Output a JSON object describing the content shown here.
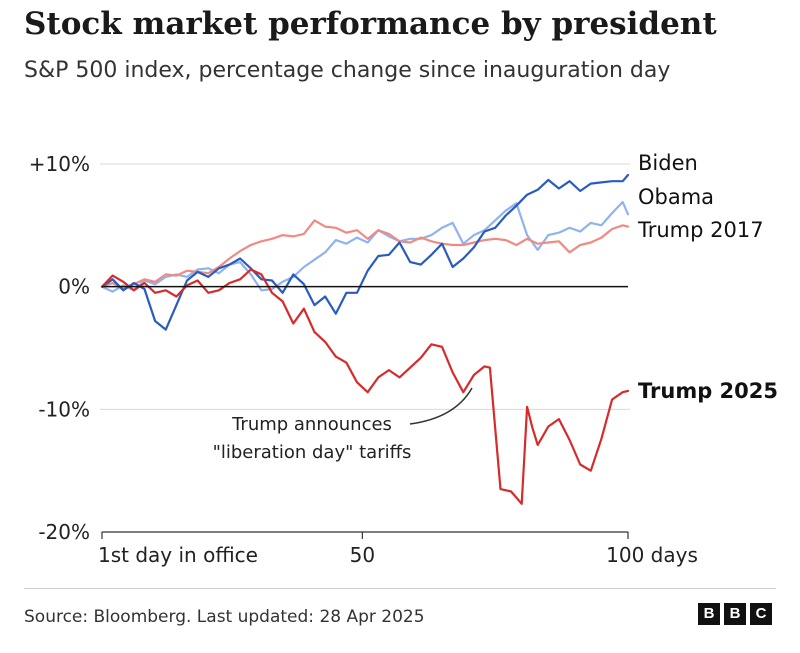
{
  "title": "Stock market performance by president",
  "subtitle": "S&P 500 index, percentage change since inauguration day",
  "source": "Source: Bloomberg. Last updated: 28 Apr 2025",
  "logo_letters": [
    "B",
    "B",
    "C"
  ],
  "annotation": {
    "line1": "Trump announces",
    "line2": "\"liberation day\" tariffs"
  },
  "colors": {
    "biden": "#2a5cbf",
    "obama": "#8fb3ee",
    "trump2017": "#f08a84",
    "trump2025": "#d62b2b",
    "zero_line": "#111111",
    "grid": "#d9d9d9"
  },
  "chart_data": {
    "type": "line",
    "title": "Stock market performance by president",
    "subtitle": "S&P 500 index, percentage change since inauguration day",
    "xlabel": "",
    "ylabel": "",
    "xlim": [
      1,
      100
    ],
    "ylim": [
      -20,
      10
    ],
    "x_ticks": [
      {
        "value": 1,
        "label": "1st day in office"
      },
      {
        "value": 50,
        "label": "50"
      },
      {
        "value": 100,
        "label": "100 days"
      }
    ],
    "y_ticks": [
      {
        "value": 10,
        "label": "+10%"
      },
      {
        "value": 0,
        "label": "0%"
      },
      {
        "value": -10,
        "label": "-10%"
      },
      {
        "value": -20,
        "label": "-20%"
      }
    ],
    "grid": true,
    "legend": "labels at line ends (right)",
    "series": [
      {
        "name": "Biden",
        "key": "biden",
        "bold": false,
        "x": [
          1,
          3,
          5,
          7,
          9,
          11,
          13,
          15,
          17,
          19,
          21,
          23,
          25,
          27,
          29,
          31,
          33,
          35,
          37,
          39,
          41,
          43,
          45,
          47,
          49,
          51,
          53,
          55,
          57,
          59,
          61,
          63,
          65,
          67,
          69,
          71,
          73,
          75,
          77,
          79,
          81,
          83,
          85,
          87,
          89,
          91,
          93,
          95,
          97,
          99,
          100
        ],
        "y": [
          0,
          0.6,
          -0.3,
          0.3,
          -0.2,
          -2.8,
          -3.5,
          -1.5,
          0.5,
          1.2,
          0.8,
          1.5,
          1.8,
          2.3,
          1.5,
          0.6,
          0.5,
          -0.5,
          1.0,
          0.2,
          -1.5,
          -0.8,
          -2.2,
          -0.5,
          -0.5,
          1.3,
          2.5,
          2.6,
          3.6,
          2.0,
          1.8,
          2.6,
          3.5,
          1.6,
          2.3,
          3.2,
          4.5,
          4.8,
          5.8,
          6.6,
          7.5,
          7.9,
          8.7,
          8.0,
          8.6,
          7.8,
          8.4,
          8.5,
          8.6,
          8.6,
          9.1
        ]
      },
      {
        "name": "Obama",
        "key": "obama",
        "bold": false,
        "x": [
          1,
          3,
          5,
          7,
          9,
          11,
          13,
          15,
          17,
          19,
          21,
          23,
          25,
          27,
          29,
          31,
          33,
          35,
          37,
          39,
          41,
          43,
          45,
          47,
          49,
          51,
          53,
          55,
          57,
          59,
          61,
          63,
          65,
          67,
          69,
          71,
          73,
          75,
          77,
          79,
          81,
          83,
          85,
          87,
          89,
          91,
          93,
          95,
          97,
          99,
          100
        ],
        "y": [
          0,
          -0.4,
          0.1,
          -0.3,
          0.5,
          0.2,
          0.8,
          1.0,
          0.8,
          1.4,
          1.5,
          1.1,
          1.8,
          2.0,
          1.0,
          -0.3,
          -0.2,
          0.4,
          0.8,
          1.6,
          2.2,
          2.8,
          3.8,
          3.5,
          4.0,
          3.6,
          4.6,
          4.1,
          3.7,
          3.9,
          3.9,
          4.2,
          4.8,
          5.2,
          3.5,
          4.2,
          4.6,
          5.4,
          6.2,
          6.8,
          4.2,
          3.0,
          4.2,
          4.4,
          4.8,
          4.5,
          5.2,
          5.0,
          6.0,
          6.9,
          5.9
        ]
      },
      {
        "name": "Trump 2017",
        "key": "trump2017",
        "bold": false,
        "x": [
          1,
          3,
          5,
          7,
          9,
          11,
          13,
          15,
          17,
          19,
          21,
          23,
          25,
          27,
          29,
          31,
          33,
          35,
          37,
          39,
          41,
          43,
          45,
          47,
          49,
          51,
          53,
          55,
          57,
          59,
          61,
          63,
          65,
          67,
          69,
          71,
          73,
          75,
          77,
          79,
          81,
          83,
          85,
          87,
          89,
          91,
          93,
          95,
          97,
          99,
          100
        ],
        "y": [
          0,
          0.3,
          -0.2,
          0.2,
          0.6,
          0.4,
          1.0,
          0.9,
          1.3,
          1.2,
          1.1,
          1.6,
          2.3,
          2.9,
          3.4,
          3.7,
          3.9,
          4.2,
          4.1,
          4.3,
          5.4,
          4.9,
          4.8,
          4.4,
          4.6,
          3.9,
          4.6,
          4.3,
          3.7,
          3.6,
          4.0,
          3.7,
          3.5,
          3.4,
          3.4,
          3.6,
          3.8,
          3.9,
          3.8,
          3.4,
          3.9,
          3.5,
          3.6,
          3.7,
          2.8,
          3.4,
          3.6,
          4.0,
          4.7,
          5.0,
          4.9
        ]
      },
      {
        "name": "Trump 2025",
        "key": "trump2025",
        "bold": true,
        "x": [
          1,
          3,
          5,
          7,
          9,
          11,
          13,
          15,
          17,
          19,
          21,
          23,
          25,
          27,
          29,
          31,
          33,
          35,
          37,
          39,
          41,
          43,
          45,
          47,
          49,
          51,
          53,
          55,
          57,
          59,
          61,
          63,
          65,
          67,
          69,
          71,
          73,
          74,
          76,
          78,
          80,
          81,
          82,
          83,
          85,
          87,
          89,
          91,
          93,
          95,
          97,
          99,
          100
        ],
        "y": [
          0,
          0.9,
          0.4,
          -0.3,
          0.3,
          -0.5,
          -0.3,
          -0.8,
          0.1,
          0.5,
          -0.5,
          -0.3,
          0.3,
          0.6,
          1.4,
          1.0,
          -0.5,
          -1.2,
          -3.0,
          -1.8,
          -3.7,
          -4.5,
          -5.7,
          -6.2,
          -7.8,
          -8.6,
          -7.4,
          -6.8,
          -7.4,
          -6.6,
          -5.8,
          -4.7,
          -4.9,
          -7.0,
          -8.6,
          -7.2,
          -6.5,
          -6.6,
          -16.5,
          -16.7,
          -17.7,
          -9.8,
          -11.5,
          -12.9,
          -11.4,
          -10.8,
          -12.5,
          -14.5,
          -15.0,
          -12.4,
          -9.2,
          -8.6,
          -8.5
        ]
      }
    ]
  }
}
